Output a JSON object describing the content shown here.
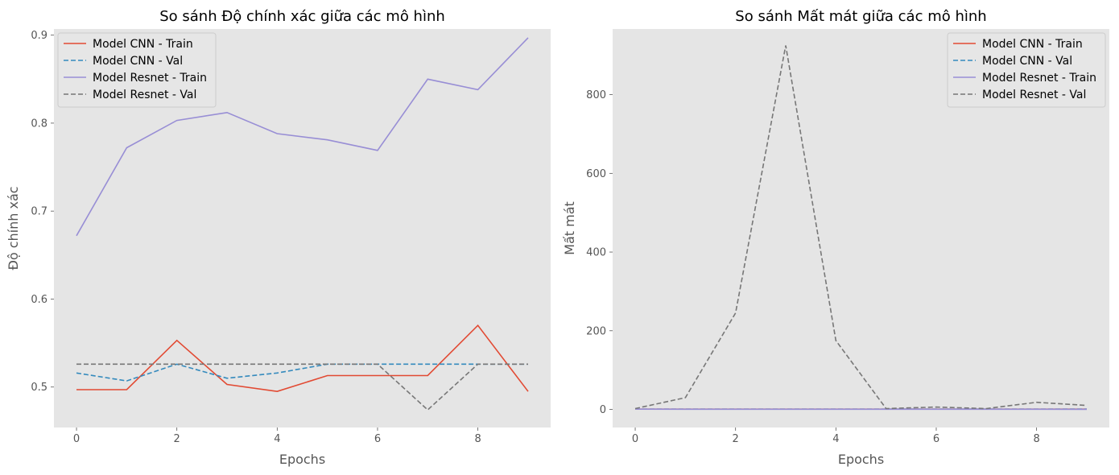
{
  "colors": {
    "figure_bg": "#ffffff",
    "axes_bg": "#e5e5e5",
    "cnn_train": "#e24a33",
    "cnn_val": "#348abd",
    "resnet_train": "#988ed5",
    "resnet_val": "#777777"
  },
  "chart_data": [
    {
      "type": "line",
      "title": "So sánh Độ chính xác giữa các mô hình",
      "xlabel": "Epochs",
      "ylabel": "Độ chính xác",
      "xlim": [
        -0.45,
        9.45
      ],
      "ylim": [
        0.454,
        0.907
      ],
      "xticks": [
        0,
        2,
        4,
        6,
        8
      ],
      "yticks": [
        0.5,
        0.6,
        0.7,
        0.8,
        0.9
      ],
      "ytick_labels": [
        "0.5",
        "0.6",
        "0.7",
        "0.8",
        "0.9"
      ],
      "grid": false,
      "legend_position": "upper left",
      "x": [
        0,
        1,
        2,
        3,
        4,
        5,
        6,
        7,
        8,
        9
      ],
      "series": [
        {
          "name": "Model CNN - Train",
          "style": "solid",
          "color_key": "cnn_train",
          "values": [
            0.497,
            0.497,
            0.553,
            0.503,
            0.495,
            0.513,
            0.513,
            0.513,
            0.57,
            0.495
          ]
        },
        {
          "name": "Model CNN - Val",
          "style": "dashed",
          "color_key": "cnn_val",
          "values": [
            0.516,
            0.507,
            0.526,
            0.51,
            0.516,
            0.526,
            0.526,
            0.526,
            0.526,
            0.526
          ]
        },
        {
          "name": "Model Resnet - Train",
          "style": "solid",
          "color_key": "resnet_train",
          "values": [
            0.672,
            0.772,
            0.803,
            0.812,
            0.788,
            0.781,
            0.769,
            0.85,
            0.838,
            0.897
          ]
        },
        {
          "name": "Model Resnet - Val",
          "style": "dashed",
          "color_key": "resnet_val",
          "values": [
            0.526,
            0.526,
            0.526,
            0.526,
            0.526,
            0.526,
            0.526,
            0.474,
            0.526,
            0.526
          ]
        }
      ]
    },
    {
      "type": "line",
      "title": "So sánh Mất mát giữa các mô hình",
      "xlabel": "Epochs",
      "ylabel": "Mất mát",
      "xlim": [
        -0.45,
        9.45
      ],
      "ylim": [
        -46,
        967
      ],
      "xticks": [
        0,
        2,
        4,
        6,
        8
      ],
      "yticks": [
        0,
        200,
        400,
        600,
        800
      ],
      "ytick_labels": [
        "0",
        "200",
        "400",
        "600",
        "800"
      ],
      "grid": false,
      "legend_position": "upper right",
      "x": [
        0,
        1,
        2,
        3,
        4,
        5,
        6,
        7,
        8,
        9
      ],
      "series": [
        {
          "name": "Model CNN - Train",
          "style": "solid",
          "color_key": "cnn_train",
          "values": [
            0.69,
            0.69,
            0.69,
            0.69,
            0.69,
            0.69,
            0.69,
            0.69,
            0.69,
            0.69
          ]
        },
        {
          "name": "Model CNN - Val",
          "style": "dashed",
          "color_key": "cnn_val",
          "values": [
            0.69,
            0.69,
            0.69,
            0.69,
            0.69,
            0.69,
            0.69,
            0.69,
            0.69,
            0.69
          ]
        },
        {
          "name": "Model Resnet - Train",
          "style": "solid",
          "color_key": "resnet_train",
          "values": [
            0.6,
            0.5,
            0.45,
            0.42,
            0.46,
            0.47,
            0.49,
            0.36,
            0.38,
            0.26
          ]
        },
        {
          "name": "Model Resnet - Val",
          "style": "dashed",
          "color_key": "resnet_val",
          "values": [
            2,
            30,
            245,
            925,
            175,
            2,
            6,
            2,
            18,
            10
          ]
        }
      ]
    }
  ]
}
